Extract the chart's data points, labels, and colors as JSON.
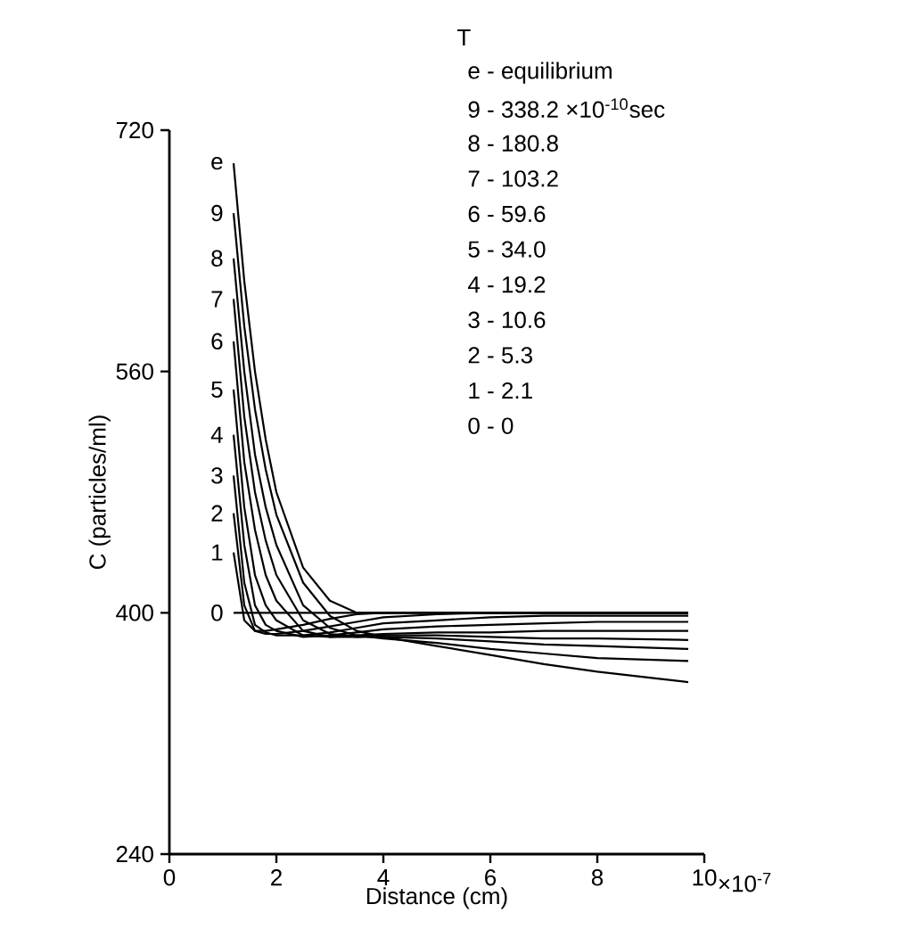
{
  "chart_data": {
    "type": "line",
    "xlabel": "Distance (cm)",
    "ylabel": "C (particles/ml)",
    "x": [
      1.2,
      1.4,
      1.6,
      1.8,
      2.0,
      2.5,
      3.0,
      3.5,
      4,
      5,
      6,
      7,
      8,
      9.7
    ],
    "xlim": [
      0,
      10
    ],
    "xticks": [
      0,
      2,
      4,
      6,
      8,
      10
    ],
    "ylim": [
      240,
      720
    ],
    "yticks": [
      240,
      400,
      560,
      720
    ],
    "series": [
      {
        "name": "e",
        "color": "#000000",
        "values": [
          698,
          620,
          560,
          515,
          480,
          430,
          408,
          400,
          400,
          400,
          400,
          400,
          400,
          400
        ]
      },
      {
        "name": "9",
        "color": "#000000",
        "values": [
          665,
          590,
          535,
          495,
          465,
          420,
          398,
          388,
          384,
          378,
          372,
          366,
          361,
          354
        ]
      },
      {
        "name": "8",
        "color": "#000000",
        "values": [
          635,
          560,
          505,
          470,
          445,
          405,
          390,
          385,
          383,
          380,
          376,
          373,
          370,
          368
        ]
      },
      {
        "name": "7",
        "color": "#000000",
        "values": [
          608,
          530,
          480,
          448,
          425,
          395,
          386,
          384,
          384,
          383,
          381,
          379,
          378,
          376
        ]
      },
      {
        "name": "6",
        "color": "#000000",
        "values": [
          580,
          500,
          455,
          425,
          408,
          388,
          384,
          384,
          385,
          385,
          384,
          383,
          383,
          382
        ]
      },
      {
        "name": "5",
        "color": "#000000",
        "values": [
          548,
          470,
          425,
          405,
          395,
          385,
          384,
          385,
          386,
          387,
          387,
          388,
          388,
          388
        ]
      },
      {
        "name": "4",
        "color": "#000000",
        "values": [
          518,
          445,
          405,
          392,
          388,
          384,
          385,
          387,
          389,
          391,
          392,
          393,
          394,
          394
        ]
      },
      {
        "name": "3",
        "color": "#000000",
        "values": [
          491,
          420,
          392,
          387,
          385,
          385,
          387,
          390,
          393,
          395,
          397,
          398,
          398,
          398
        ]
      },
      {
        "name": "2",
        "color": "#000000",
        "values": [
          466,
          405,
          388,
          386,
          386,
          388,
          391,
          394,
          397,
          399,
          400,
          400,
          400,
          400
        ]
      },
      {
        "name": "1",
        "color": "#000000",
        "values": [
          440,
          395,
          388,
          388,
          389,
          392,
          396,
          399,
          400,
          400,
          400,
          400,
          400,
          400
        ]
      },
      {
        "name": "0",
        "color": "#000000",
        "values": [
          400,
          400,
          400,
          400,
          400,
          400,
          400,
          400,
          400,
          400,
          400,
          400,
          400,
          400
        ]
      }
    ],
    "annotations": [
      "×10$^{-7}$",
      "T",
      "e - equilibrium",
      "9 - 338.2 ×10$^{-10}$sec",
      "8 - 180.8",
      "7 - 103.2",
      "6 - 59.6",
      "5 - 34.0",
      "4 - 19.2",
      "3 - 10.6",
      "2 - 5.3",
      "1 - 2.1",
      "0 - 0"
    ]
  }
}
